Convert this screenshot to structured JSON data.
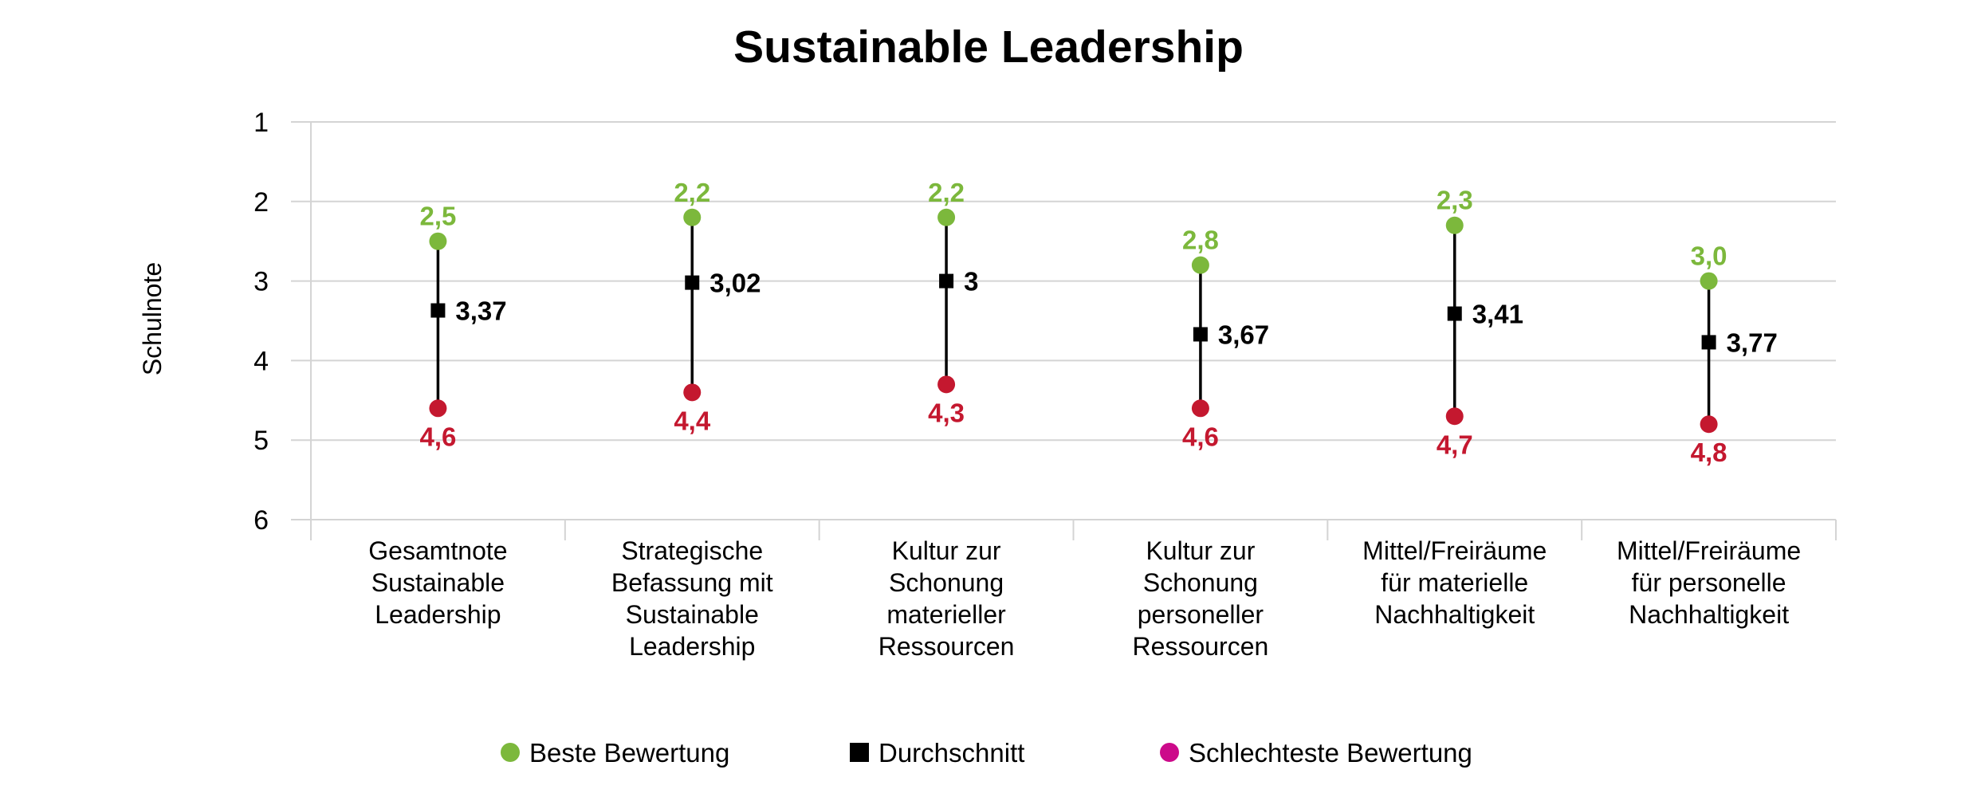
{
  "chart_data": {
    "type": "dot-range",
    "title": "Sustainable Leadership",
    "ylabel": "Schulnote",
    "ylim": [
      1,
      6
    ],
    "y_inverted": true,
    "yticks": [
      "1",
      "2",
      "3",
      "4",
      "5",
      "6"
    ],
    "grid": true,
    "legend_position": "bottom",
    "categories": [
      [
        "Gesamtnote",
        "Sustainable",
        "Leadership"
      ],
      [
        "Strategische",
        "Befassung mit",
        "Sustainable",
        "Leadership"
      ],
      [
        "Kultur zur",
        "Schonung",
        "materieller",
        "Ressourcen"
      ],
      [
        "Kultur zur",
        "Schonung",
        "personeller",
        "Ressourcen"
      ],
      [
        "Mittel/Freiräume",
        "für materielle",
        "Nachhaltigkeit"
      ],
      [
        "Mittel/Freiräume",
        "für personelle",
        "Nachhaltigkeit"
      ]
    ],
    "series": [
      {
        "name": "Beste Bewertung",
        "marker": "circle",
        "color": "#7cb83c",
        "values": [
          2.5,
          2.2,
          2.2,
          2.8,
          2.3,
          3.0
        ],
        "labels": [
          "2,5",
          "2,2",
          "2,2",
          "2,8",
          "2,3",
          "3,0"
        ]
      },
      {
        "name": "Durchschnitt",
        "marker": "square",
        "color": "#000000",
        "values": [
          3.37,
          3.02,
          3.0,
          3.67,
          3.41,
          3.77
        ],
        "labels": [
          "3,37",
          "3,02",
          "3",
          "3,67",
          "3,41",
          "3,77"
        ]
      },
      {
        "name": "Schlechteste Bewertung",
        "marker": "circle",
        "color": "#c4182f",
        "legend_color": "#cc0a8a",
        "values": [
          4.6,
          4.4,
          4.3,
          4.6,
          4.7,
          4.8
        ],
        "labels": [
          "4,6",
          "4,4",
          "4,3",
          "4,6",
          "4,7",
          "4,8"
        ]
      }
    ]
  }
}
